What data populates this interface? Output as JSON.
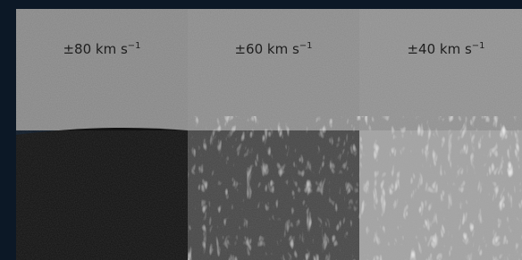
{
  "panels": [
    {
      "label": "±80 km s",
      "exponent": "−1"
    },
    {
      "label": "±60 km s",
      "exponent": "−1"
    },
    {
      "label": "±40 km s",
      "exponent": "−1"
    }
  ]
}
